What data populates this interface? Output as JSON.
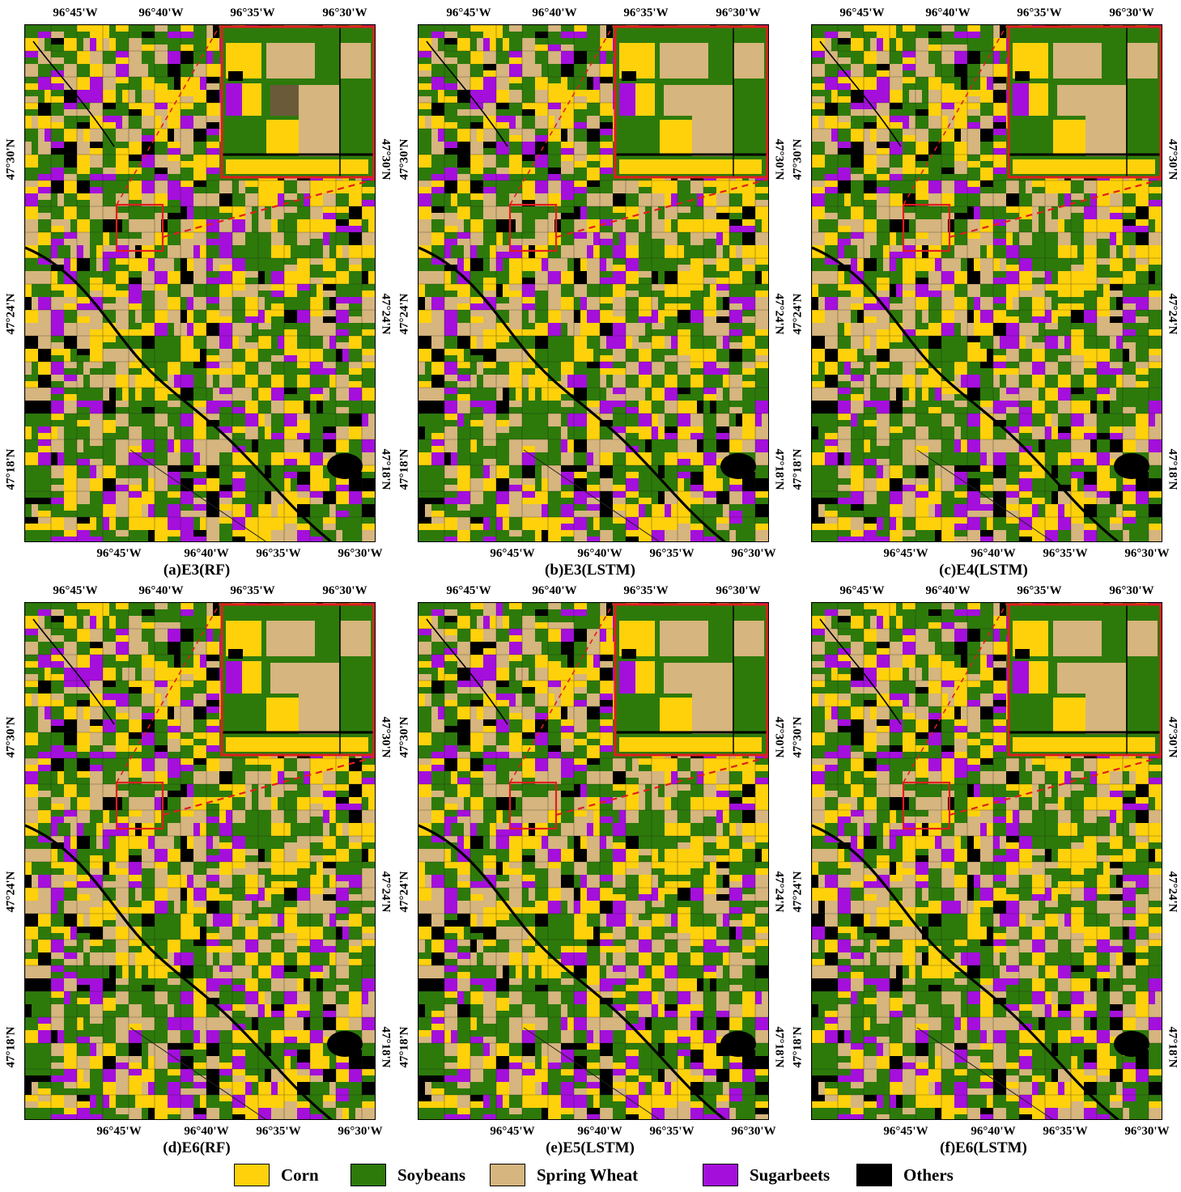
{
  "legend": {
    "title": "",
    "items": [
      {
        "label": "Corn",
        "color": "#ffd10a"
      },
      {
        "label": "Soybeans",
        "color": "#2d7a0b"
      },
      {
        "label": "Spring Wheat",
        "color": "#d6b57e"
      },
      {
        "label": "Sugarbeets",
        "color": "#a40fdc"
      },
      {
        "label": "Others",
        "color": "#000000"
      }
    ]
  },
  "axes": {
    "lon_top": [
      "96°45'W",
      "96°40'W",
      "96°35'W",
      "96°30'W"
    ],
    "lon_bottom": [
      "96°45'W",
      "96°40'W",
      "96°35'W",
      "96°30'W"
    ],
    "lat": [
      "47°30'N",
      "47°24'N",
      "47°18'N"
    ]
  },
  "inset": {
    "frame_color": "#e01e1e",
    "connector_style": "dashed"
  },
  "panels": [
    {
      "caption": "(a)E3(RF)"
    },
    {
      "caption": "(b)E3(LSTM)"
    },
    {
      "caption": "(c)E4(LSTM)"
    },
    {
      "caption": "(d)E6(RF)"
    },
    {
      "caption": "(e)E5(LSTM)"
    },
    {
      "caption": "(f)E6(LSTM)"
    }
  ]
}
